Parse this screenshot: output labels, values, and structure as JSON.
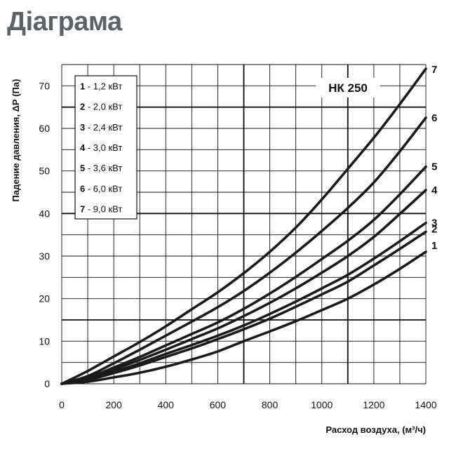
{
  "page": {
    "title": "Діаграма"
  },
  "chart_data": {
    "type": "line",
    "title": "НК 250",
    "xlabel": "Расход воздуха, (м³/ч)",
    "ylabel": "Падение давления, ΔР (Па)",
    "xlim": [
      0,
      1400
    ],
    "ylim": [
      0,
      75
    ],
    "x_ticks": [
      "0",
      "200",
      "400",
      "600",
      "800",
      "1000",
      "1200",
      "1400"
    ],
    "y_ticks": [
      "0",
      "10",
      "20",
      "30",
      "40",
      "50",
      "60",
      "70"
    ],
    "grid": true,
    "legend_position": "top-left",
    "line_color": "#1a1a1a",
    "legend": [
      {
        "num": "1",
        "text": " - 1,2 кВт"
      },
      {
        "num": "2",
        "text": " - 2,0 кВт"
      },
      {
        "num": "3",
        "text": " - 2,4 кВт"
      },
      {
        "num": "4",
        "text": " - 3,0 кВт"
      },
      {
        "num": "5",
        "text": " - 3,6 кВт"
      },
      {
        "num": "6",
        "text": " - 6,0 кВт"
      },
      {
        "num": "7",
        "text": " - 9,0 кВт"
      }
    ],
    "x": [
      0,
      100,
      200,
      300,
      400,
      500,
      600,
      700,
      800,
      900,
      1000,
      1100,
      1200,
      1300,
      1400
    ],
    "series": [
      {
        "name": "1",
        "values": [
          0,
          0.5,
          1.5,
          2.6,
          4.0,
          5.7,
          7.6,
          10.0,
          12.3,
          14.7,
          17.3,
          20.0,
          23.3,
          27.0,
          31.0
        ]
      },
      {
        "name": "2",
        "values": [
          0,
          0.9,
          2.5,
          4.3,
          6.3,
          8.3,
          10.5,
          12.8,
          15.3,
          18.1,
          21.0,
          24.0,
          27.8,
          31.7,
          35.7
        ]
      },
      {
        "name": "3",
        "values": [
          0,
          1.0,
          2.8,
          4.8,
          7.0,
          9.1,
          11.3,
          13.7,
          16.4,
          19.3,
          22.4,
          25.6,
          29.4,
          33.5,
          37.8
        ]
      },
      {
        "name": "4",
        "values": [
          0,
          1.2,
          3.3,
          5.6,
          8.0,
          10.5,
          13.0,
          15.9,
          19.0,
          22.4,
          26.1,
          30.0,
          34.5,
          39.9,
          45.5
        ]
      },
      {
        "name": "5",
        "values": [
          0,
          1.4,
          3.8,
          6.3,
          9.0,
          11.7,
          14.4,
          17.6,
          21.2,
          25.1,
          29.3,
          33.6,
          38.5,
          44.5,
          51.0
        ]
      },
      {
        "name": "6",
        "values": [
          0,
          1.8,
          4.8,
          8.0,
          11.3,
          14.6,
          18.0,
          21.8,
          26.1,
          30.8,
          35.9,
          41.3,
          47.3,
          54.6,
          62.5
        ]
      },
      {
        "name": "7",
        "values": [
          0,
          3.0,
          6.4,
          9.8,
          13.5,
          17.5,
          21.5,
          26.0,
          31.0,
          36.7,
          43.3,
          50.5,
          57.8,
          65.7,
          74.0
        ]
      }
    ]
  }
}
